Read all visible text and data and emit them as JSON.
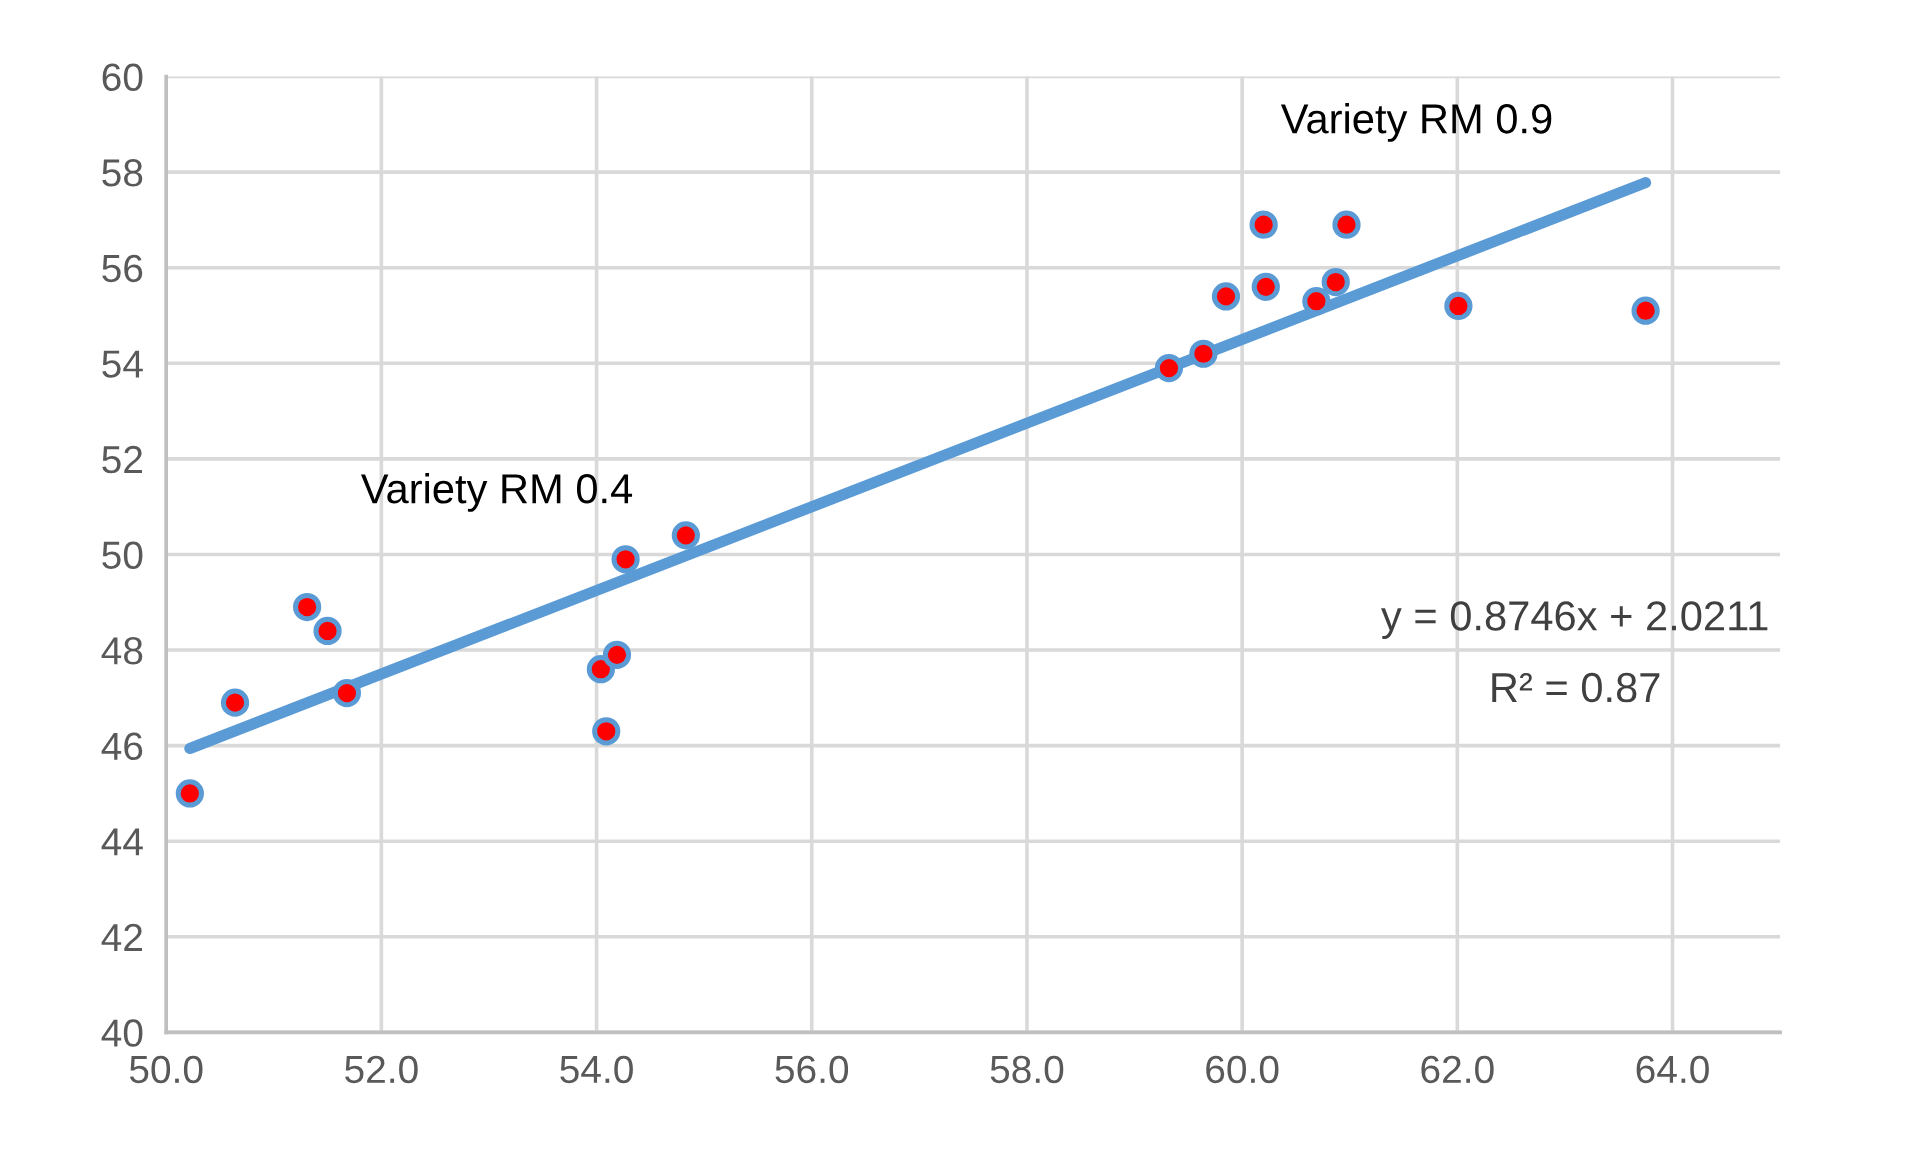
{
  "chart_data": {
    "type": "scatter",
    "x": [
      50.22,
      50.64,
      51.31,
      51.5,
      51.68,
      54.04,
      54.19,
      54.09,
      54.27,
      54.83,
      59.32,
      59.64,
      59.85,
      60.2,
      60.22,
      60.69,
      60.87,
      60.97,
      62.01,
      63.75
    ],
    "series": [
      {
        "color": "#ff0000",
        "marker": "circle",
        "values": [
          45.0,
          46.9,
          48.9,
          48.4,
          47.1,
          47.6,
          47.9,
          46.3,
          49.9,
          50.4,
          53.9,
          54.2,
          55.4,
          56.9,
          55.6,
          55.3,
          55.7,
          56.9,
          55.2,
          55.1
        ]
      },
      {
        "type": "line",
        "color": "#5b9bd5",
        "x": [
          50.22,
          63.75
        ],
        "values": [
          45.94,
          57.78
        ]
      }
    ],
    "xlim": [
      50,
      65
    ],
    "ylim": [
      40,
      60
    ],
    "xticks": [
      {
        "value": 50,
        "label": "50.0"
      },
      {
        "value": 52,
        "label": "52.0"
      },
      {
        "value": 54,
        "label": "54.0"
      },
      {
        "value": 56,
        "label": "56.0"
      },
      {
        "value": 58,
        "label": "58.0"
      },
      {
        "value": 60,
        "label": "60.0"
      },
      {
        "value": 62,
        "label": "62.0"
      },
      {
        "value": 64,
        "label": "64.0"
      }
    ],
    "yticks": [
      40,
      42,
      44,
      46,
      48,
      50,
      52,
      54,
      56,
      58,
      60
    ],
    "grid": true,
    "annotations": [
      "Variety RM 0.4",
      "Variety RM 0.9",
      "y = 0.8746x + 2.0211",
      "R² = 0.87"
    ]
  }
}
